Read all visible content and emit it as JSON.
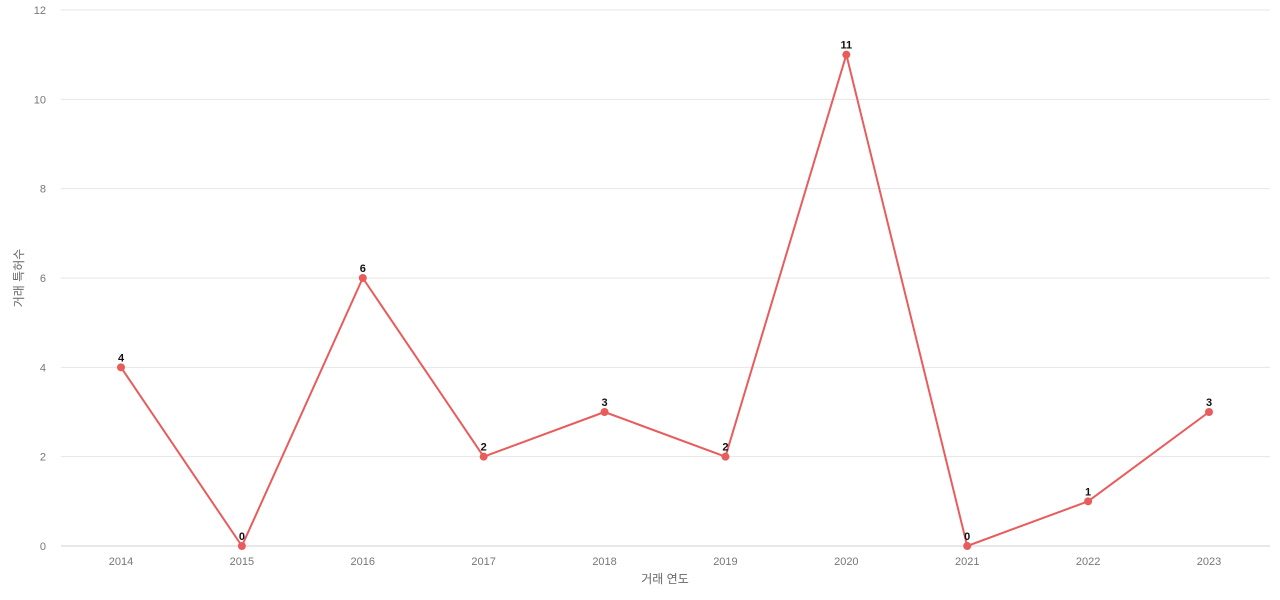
{
  "chart_data": {
    "type": "line",
    "title": "",
    "xlabel": "거래 연도",
    "ylabel": "거래 특허수",
    "categories": [
      "2014",
      "2015",
      "2016",
      "2017",
      "2018",
      "2019",
      "2020",
      "2021",
      "2022",
      "2023"
    ],
    "series": [
      {
        "values": [
          4,
          0,
          6,
          2,
          3,
          2,
          11,
          0,
          1,
          3
        ],
        "color": "#e85c5c"
      }
    ],
    "ylim": [
      0,
      12
    ],
    "yticks": [
      0,
      2,
      4,
      6,
      8,
      10,
      12
    ],
    "grid": true,
    "show_data_labels": true,
    "legend": "none"
  }
}
